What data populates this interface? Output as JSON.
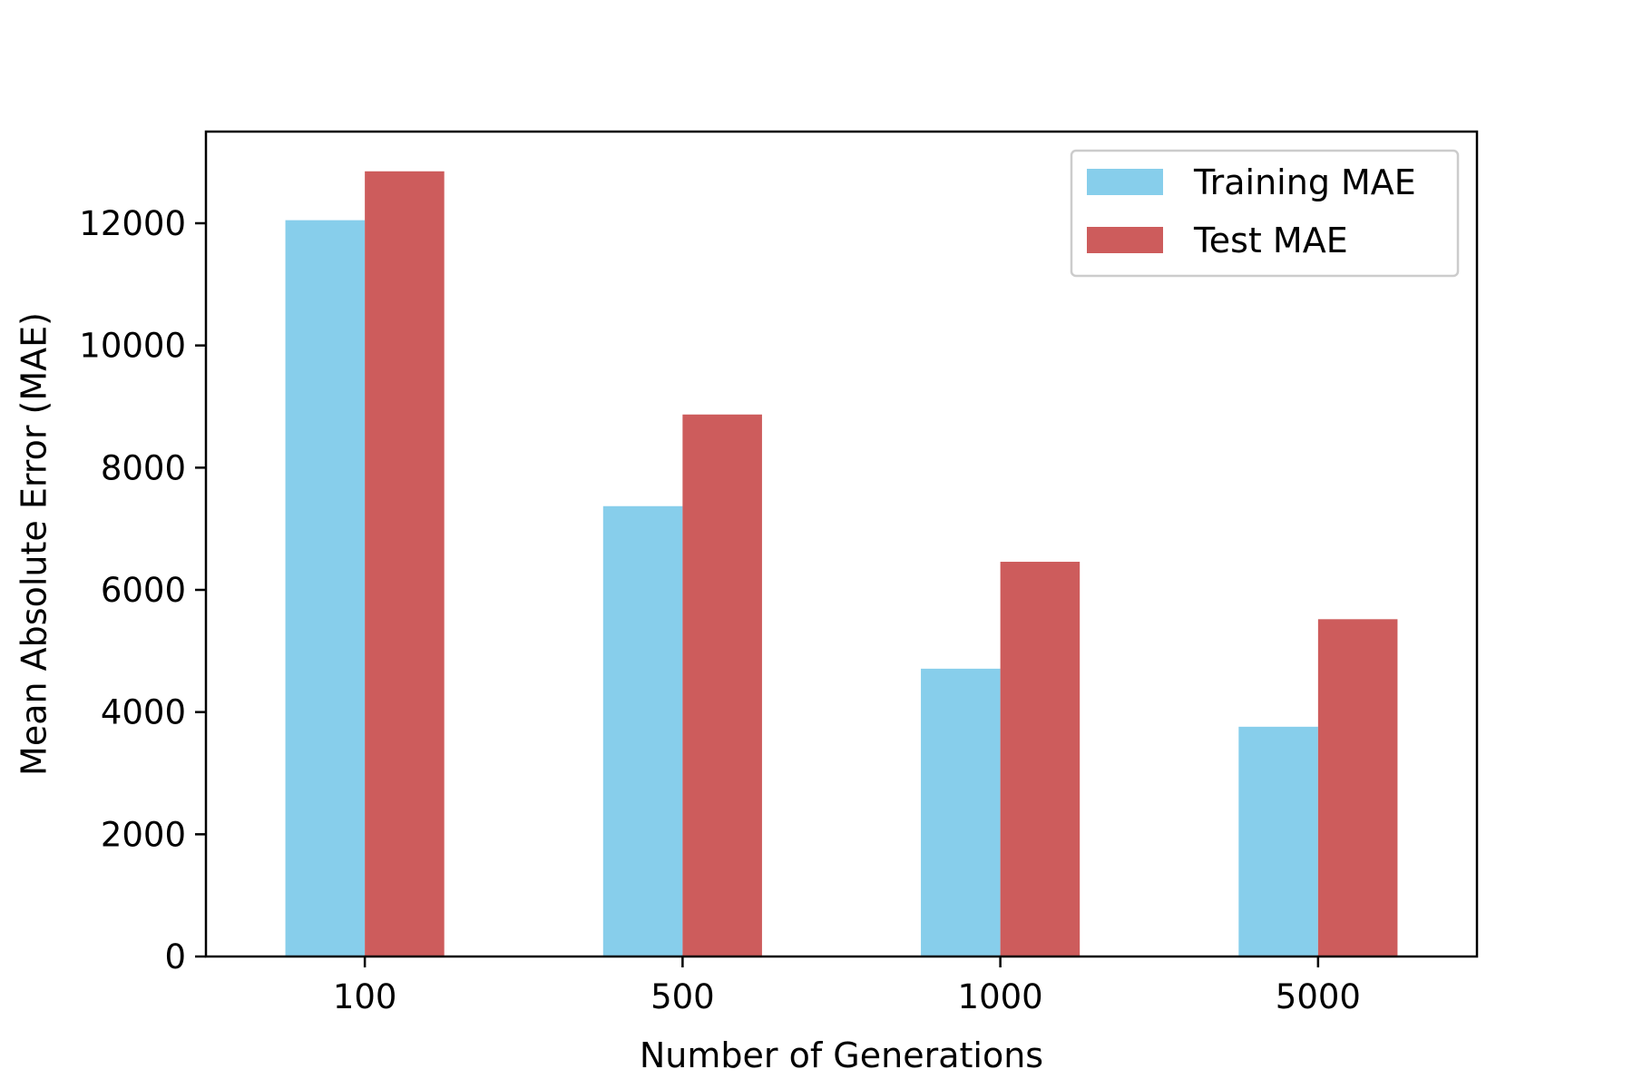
{
  "chart_data": {
    "type": "bar",
    "title": "",
    "xlabel": "Number of Generations",
    "ylabel": "Mean Absolute Error (MAE)",
    "categories": [
      "100",
      "500",
      "1000",
      "5000"
    ],
    "series": [
      {
        "name": "Training MAE",
        "color": "#87ceeb",
        "values": [
          12050,
          7370,
          4710,
          3760
        ]
      },
      {
        "name": "Test MAE",
        "color": "#cd5c5c",
        "values": [
          12850,
          8870,
          6460,
          5520
        ]
      }
    ],
    "ylim": [
      0,
      13500
    ],
    "yticks": [
      "0",
      "2000",
      "4000",
      "6000",
      "8000",
      "10000",
      "12000"
    ],
    "legend_position": "top-right",
    "grid": false
  }
}
